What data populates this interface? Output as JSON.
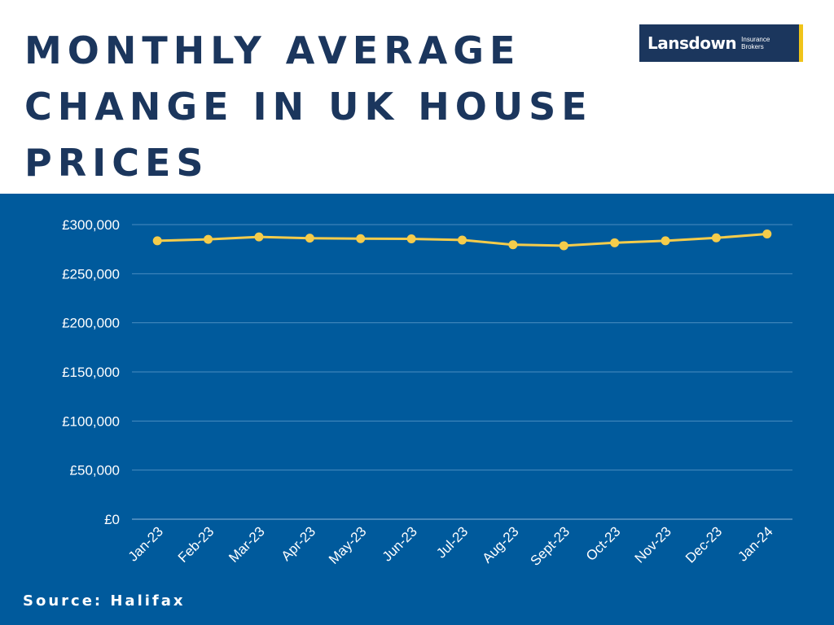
{
  "header": {
    "title": "MONTHLY AVERAGE CHANGE IN UK HOUSE PRICES"
  },
  "logo": {
    "name": "Lansdown",
    "tagline_line1": "Insurance",
    "tagline_line2": "Brokers"
  },
  "footer": {
    "source": "Source: Halifax"
  },
  "colors": {
    "title": "#1b365d",
    "panel_background": "#005a9c",
    "series_line": "#f5cc4b",
    "gridline": "#4a8cc0",
    "logo_accent": "#f0c419"
  },
  "chart_data": {
    "type": "line",
    "title": "MONTHLY AVERAGE CHANGE IN UK HOUSE PRICES",
    "xlabel": "",
    "ylabel": "",
    "categories": [
      "Jan-23",
      "Feb-23",
      "Mar-23",
      "Apr-23",
      "May-23",
      "Jun-23",
      "Jul-23",
      "Aug-23",
      "Sept-23",
      "Oct-23",
      "Nov-23",
      "Dec-23",
      "Jan-24"
    ],
    "series": [
      {
        "values": [
          283500,
          285000,
          287500,
          286200,
          285700,
          285500,
          284300,
          279500,
          278500,
          281500,
          283500,
          286500,
          290500
        ]
      }
    ],
    "ylim": [
      0,
      300000
    ],
    "yticks": [
      0,
      50000,
      100000,
      150000,
      200000,
      250000,
      300000
    ],
    "ytick_labels": [
      "£0",
      "£50,000",
      "£100,000",
      "£150,000",
      "£200,000",
      "£250,000",
      "£300,000"
    ],
    "grid": "horizontal",
    "legend": "none"
  }
}
